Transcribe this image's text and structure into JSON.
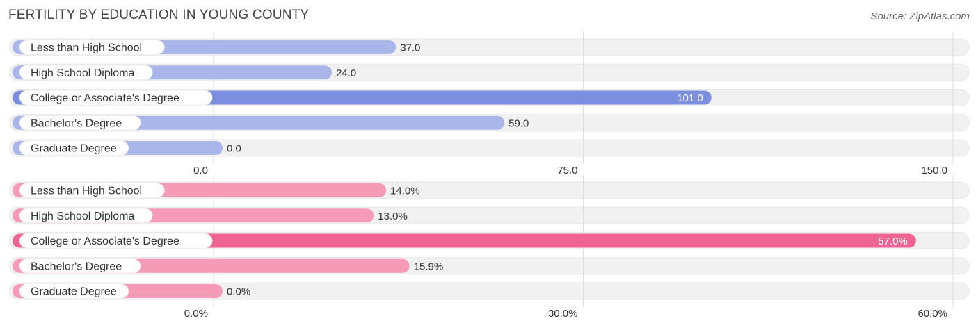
{
  "title": "FERTILITY BY EDUCATION IN YOUNG COUNTY",
  "source": "Source: ZipAtlas.com",
  "colors": {
    "blue_light": "#aab6ea",
    "blue_dark": "#7b8fde",
    "pink_light": "#f59ab7",
    "pink_dark": "#ee6593",
    "track": "#f1f1f1",
    "grid": "#dddddd"
  },
  "chart_data": [
    {
      "type": "bar",
      "orientation": "horizontal",
      "categories": [
        "Less than High School",
        "High School Diploma",
        "College or Associate's Degree",
        "Bachelor's Degree",
        "Graduate Degree"
      ],
      "values": [
        37.0,
        24.0,
        101.0,
        59.0,
        0.0
      ],
      "value_labels": [
        "37.0",
        "24.0",
        "101.0",
        "59.0",
        "0.0"
      ],
      "xlim": [
        0,
        150
      ],
      "ticks": [
        0,
        75,
        150
      ],
      "tick_labels": [
        "0.0",
        "75.0",
        "150.0"
      ],
      "highlight_index": 2,
      "grid": true
    },
    {
      "type": "bar",
      "orientation": "horizontal",
      "categories": [
        "Less than High School",
        "High School Diploma",
        "College or Associate's Degree",
        "Bachelor's Degree",
        "Graduate Degree"
      ],
      "values": [
        14.0,
        13.0,
        57.0,
        15.9,
        0.0
      ],
      "value_labels": [
        "14.0%",
        "13.0%",
        "57.0%",
        "15.9%",
        "0.0%"
      ],
      "xlim": [
        0,
        60
      ],
      "ticks": [
        0,
        30,
        60
      ],
      "tick_labels": [
        "0.0%",
        "30.0%",
        "60.0%"
      ],
      "highlight_index": 2,
      "grid": true
    }
  ]
}
